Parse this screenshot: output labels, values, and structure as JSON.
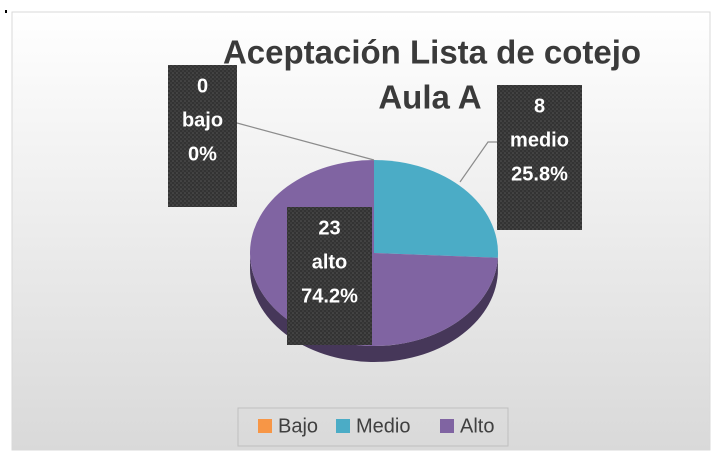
{
  "chart_data": {
    "type": "pie",
    "title_lines": [
      "Aceptación Lista de cotejo",
      "Aula A"
    ],
    "categories": [
      "Bajo",
      "Medio",
      "Alto"
    ],
    "values": [
      0,
      8,
      23
    ],
    "colors": [
      "#f79646",
      "#4bacc6",
      "#8064a2"
    ],
    "label_names": [
      "bajo",
      "medio",
      "alto"
    ],
    "percent_labels": [
      "0%",
      "25.8%",
      "74.2%"
    ],
    "legend_position": "bottom"
  }
}
